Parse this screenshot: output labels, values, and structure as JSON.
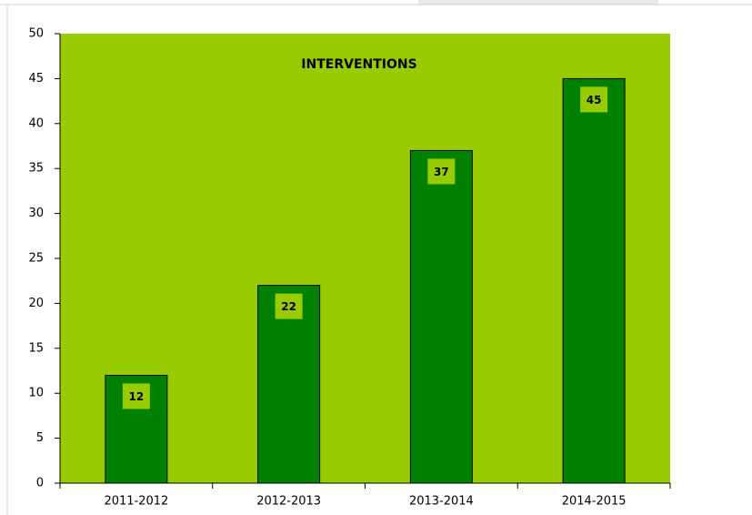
{
  "chart_data": {
    "type": "bar",
    "title": "INTERVENTIONS",
    "categories": [
      "2011-2012",
      "2012-2013",
      "2013-2014",
      "2014-2015"
    ],
    "values": [
      12,
      22,
      37,
      45
    ],
    "color": "#008000",
    "plot_background": "#99cc00",
    "ylim": [
      0,
      50
    ],
    "yticks": [
      0,
      5,
      10,
      15,
      20,
      25,
      30,
      35,
      40,
      45,
      50
    ]
  }
}
